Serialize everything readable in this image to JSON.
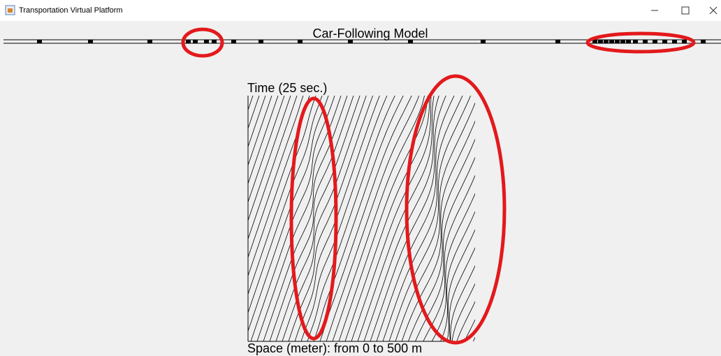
{
  "window": {
    "title": "Transportation Virtual Platform"
  },
  "header": {
    "title": "Car-Following Model"
  },
  "diagram": {
    "y_label": "Time (25 sec.)",
    "x_label": "Space (meter): from 0 to 500 m"
  }
}
